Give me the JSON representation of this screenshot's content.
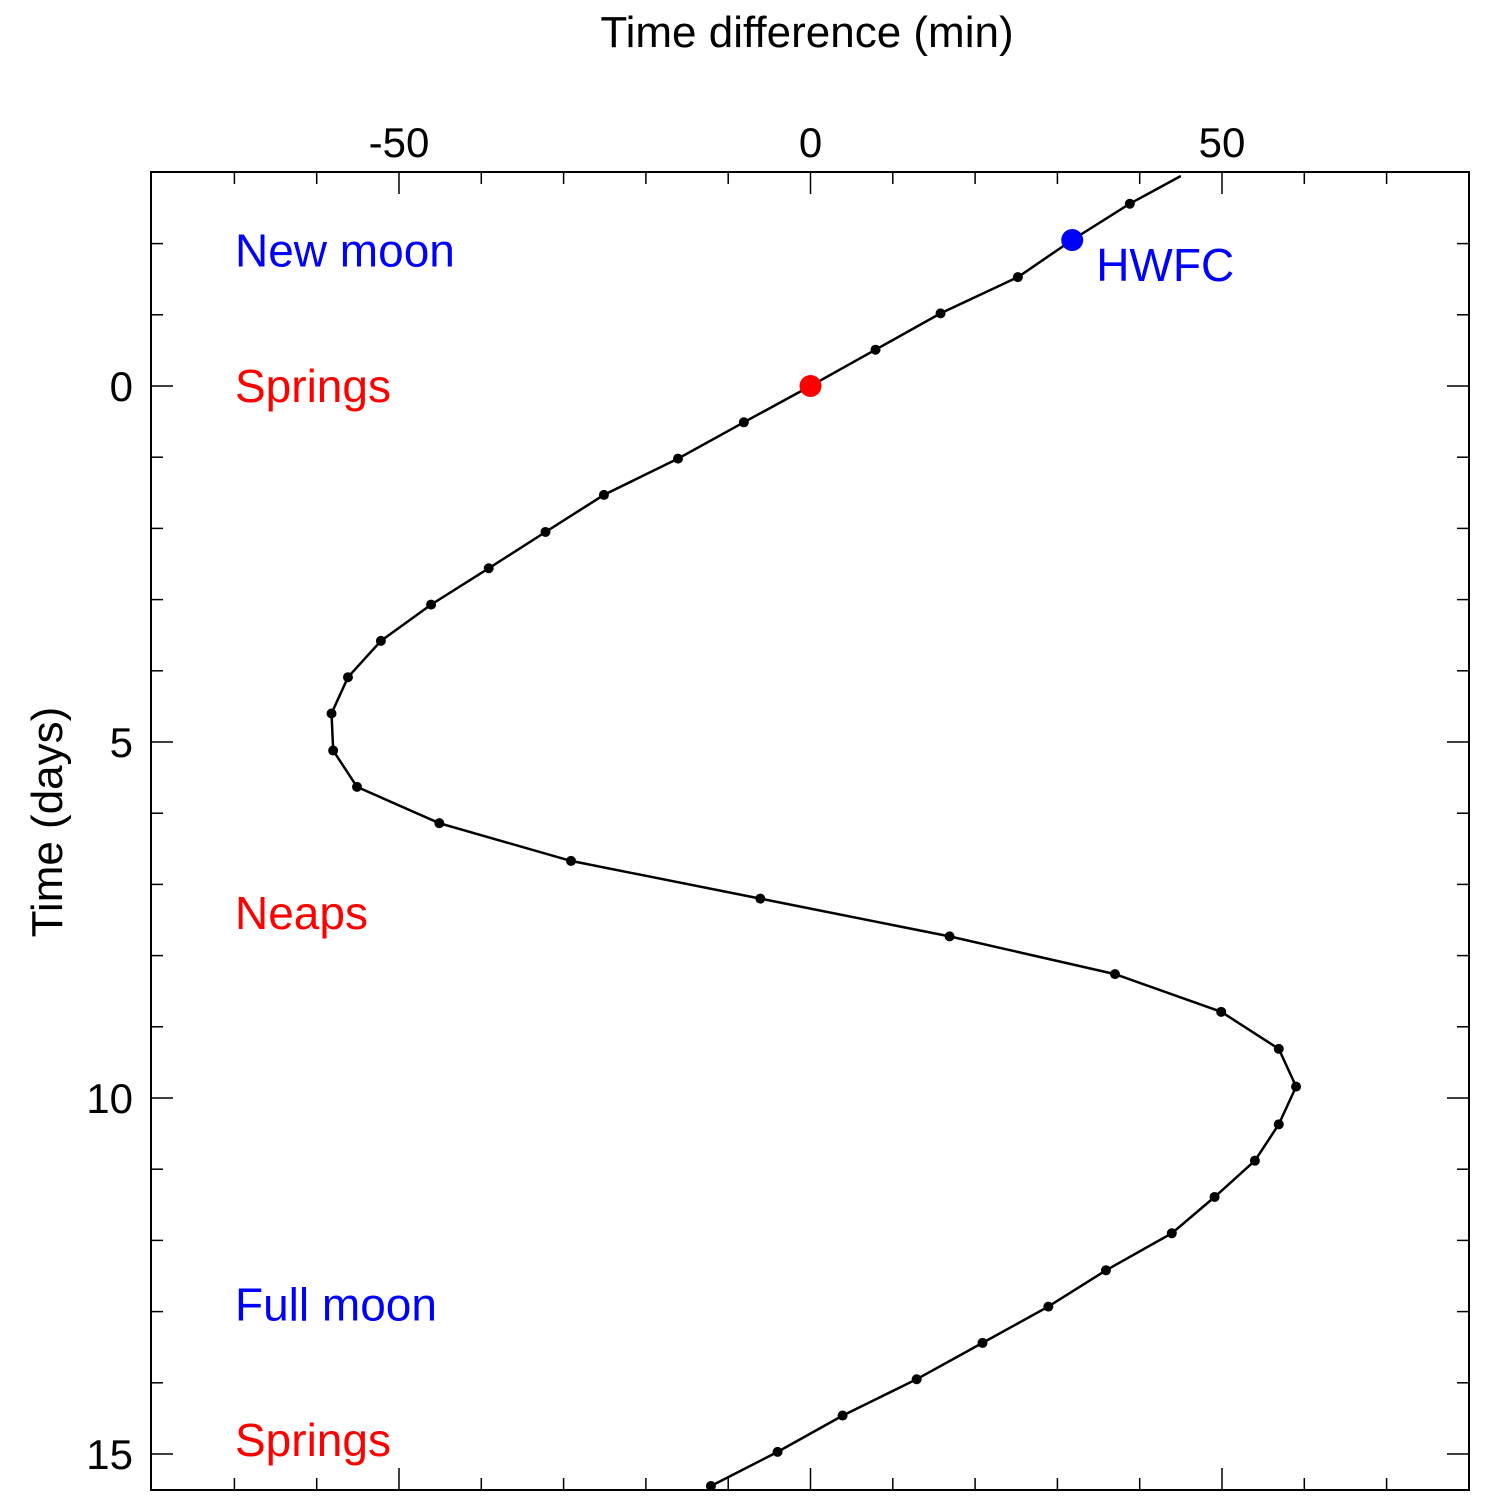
{
  "chart_data": {
    "type": "line",
    "xlabel": "Time difference (min)",
    "ylabel": "Time (days)",
    "xlim": [
      -80,
      80
    ],
    "ylim": [
      15.2,
      -3.0
    ],
    "y_inverted": true,
    "x_axis_position": "top",
    "grid": false,
    "x_ticks": [
      -50,
      0,
      50
    ],
    "y_ticks": [
      0,
      5,
      10,
      15
    ],
    "series": [
      {
        "x": [
          45,
          38.8,
          31.8,
          25.2,
          15.8,
          7.9,
          0,
          -8.1,
          -16.1,
          -25.1,
          -32.2,
          -39.1,
          -46.1,
          -52.2,
          -56.2,
          -58.2,
          -58.0,
          -55.1,
          -45.1,
          -29.1,
          -6.1,
          16.9,
          37.0,
          49.9,
          56.9,
          59.0,
          56.9,
          54.0,
          49.1,
          43.9,
          35.9,
          28.9,
          20.9,
          12.9,
          3.9,
          -4.0,
          -12.1
        ],
        "y": [
          -2.95,
          -2.56,
          -2.05,
          -1.53,
          -1.02,
          -0.51,
          0.0,
          0.51,
          1.02,
          1.53,
          2.05,
          2.56,
          3.07,
          3.58,
          4.09,
          4.6,
          5.12,
          5.63,
          6.14,
          6.67,
          7.2,
          7.73,
          8.26,
          8.79,
          9.31,
          9.84,
          10.37,
          10.88,
          11.39,
          11.9,
          12.42,
          12.93,
          13.44,
          13.95,
          14.46,
          14.97,
          15.45
        ]
      }
    ],
    "highlights": [
      {
        "x": 0,
        "y": 0,
        "color": "#ff0000"
      },
      {
        "x": 31.8,
        "y": -2.05,
        "color": "#0000ff",
        "label": "HWFC"
      }
    ],
    "annotations": [
      {
        "text": "New moon",
        "y": -1.9,
        "color": "#0000ff"
      },
      {
        "text": "Springs",
        "y": 0.0,
        "color": "#ff0000"
      },
      {
        "text": "Neaps",
        "y": 7.4,
        "color": "#ff0000"
      },
      {
        "text": "Full moon",
        "y": 12.9,
        "color": "#0000ff"
      },
      {
        "text": "Springs",
        "y": 14.8,
        "color": "#ff0000"
      }
    ]
  }
}
